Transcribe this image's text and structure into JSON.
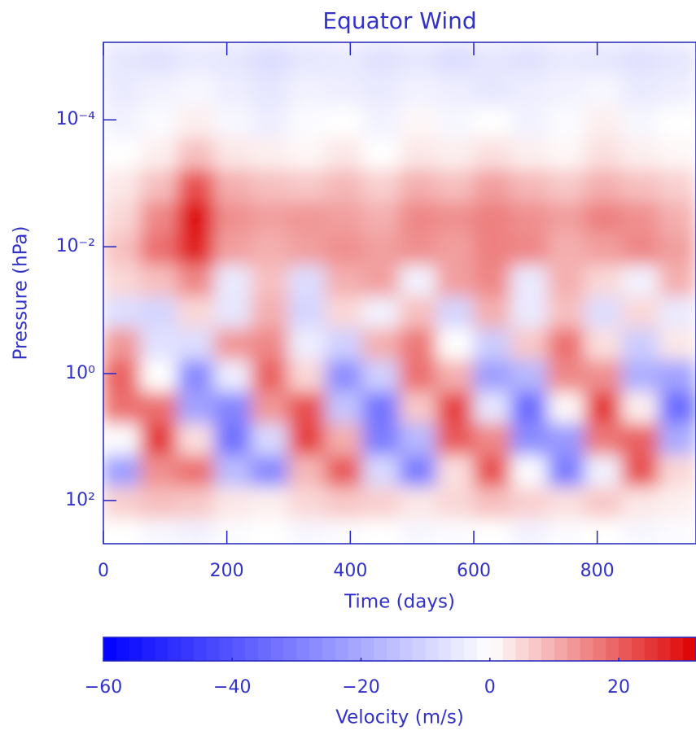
{
  "chart_data": {
    "type": "heatmap",
    "title": "Equator Wind",
    "x_label": "Time (days)",
    "y_label": "Pressure (hPa)",
    "colorbar_label": "Velocity (m/s)",
    "xlim": [
      0,
      960
    ],
    "xticks": [
      0,
      200,
      400,
      600,
      800
    ],
    "ylim": [
      6e-06,
      480
    ],
    "y_scale": "log",
    "y_inverted": true,
    "yticks": [
      {
        "value": 0.0001,
        "label": "10⁻⁴"
      },
      {
        "value": 0.01,
        "label": "10⁻²"
      },
      {
        "value": 1,
        "label": "10⁰"
      },
      {
        "value": 100,
        "label": "10²"
      }
    ],
    "clim": [
      -60,
      32
    ],
    "cticks": [
      {
        "value": -60,
        "label": "−60"
      },
      {
        "value": -40,
        "label": "−40"
      },
      {
        "value": -20,
        "label": "−20"
      },
      0,
      20
    ],
    "colors": [
      "#0000ff",
      "#ffffff",
      "#dd0000"
    ],
    "x": [
      30,
      90,
      150,
      210,
      270,
      330,
      390,
      450,
      510,
      570,
      630,
      690,
      750,
      810,
      870,
      930
    ],
    "y": [
      1.1e-05,
      3.5e-05,
      0.00011,
      0.00035,
      0.0011,
      0.0035,
      0.011,
      0.035,
      0.11,
      0.35,
      1.1,
      3.5,
      11,
      35,
      110,
      350
    ],
    "values": [
      [
        -6,
        -7,
        -5,
        -6,
        -8,
        -6,
        -5,
        -7,
        -6,
        -8,
        -6,
        -7,
        -5,
        -6,
        -7,
        -6
      ],
      [
        -5,
        -3,
        -2,
        -4,
        -6,
        -3,
        -4,
        -5,
        -3,
        -4,
        -6,
        -4,
        -3,
        -2,
        -5,
        -4
      ],
      [
        -3,
        -1,
        2,
        -2,
        -4,
        -1,
        0,
        -3,
        1,
        -2,
        0,
        -3,
        -1,
        2,
        -2,
        0
      ],
      [
        0,
        2,
        8,
        3,
        2,
        1,
        3,
        0,
        3,
        2,
        4,
        2,
        1,
        4,
        2,
        1
      ],
      [
        3,
        8,
        22,
        10,
        8,
        7,
        9,
        6,
        10,
        8,
        12,
        9,
        7,
        10,
        8,
        6
      ],
      [
        5,
        15,
        30,
        14,
        12,
        13,
        12,
        10,
        15,
        14,
        16,
        14,
        12,
        16,
        14,
        10
      ],
      [
        8,
        18,
        28,
        12,
        10,
        12,
        14,
        12,
        14,
        12,
        16,
        15,
        10,
        12,
        15,
        12
      ],
      [
        5,
        8,
        15,
        -5,
        8,
        -8,
        10,
        12,
        -3,
        12,
        15,
        -5,
        10,
        5,
        -3,
        10
      ],
      [
        -8,
        -10,
        5,
        -6,
        10,
        -10,
        5,
        -3,
        8,
        -10,
        10,
        -5,
        8,
        -8,
        5,
        -5
      ],
      [
        13,
        -7,
        -8,
        13,
        15,
        -4,
        -11,
        10,
        17,
        0,
        -12,
        7,
        18,
        4,
        -12,
        3
      ],
      [
        20,
        0,
        -28,
        -4,
        20,
        5,
        -27,
        -11,
        18,
        10,
        -23,
        -17,
        15,
        14,
        -19,
        -22
      ],
      [
        18,
        18,
        -22,
        -29,
        13,
        22,
        -14,
        -33,
        7,
        24,
        -6,
        -35,
        1,
        25,
        2,
        -35
      ],
      [
        -1,
        25,
        4,
        -34,
        -9,
        24,
        10,
        -31,
        -17,
        21,
        15,
        -27,
        -24,
        17,
        20,
        -20
      ],
      [
        -23,
        14,
        18,
        -16,
        -28,
        9,
        21,
        -9,
        -31,
        4,
        22,
        -1,
        -31,
        -3,
        22,
        5
      ],
      [
        6,
        8,
        7,
        3,
        2,
        5,
        7,
        6,
        3,
        5,
        8,
        6,
        4,
        7,
        3,
        2
      ],
      [
        0,
        -2,
        -3,
        -1,
        0,
        -2,
        -1,
        0,
        -2,
        -1,
        0,
        -3,
        -1,
        0,
        -2,
        -1
      ]
    ]
  }
}
